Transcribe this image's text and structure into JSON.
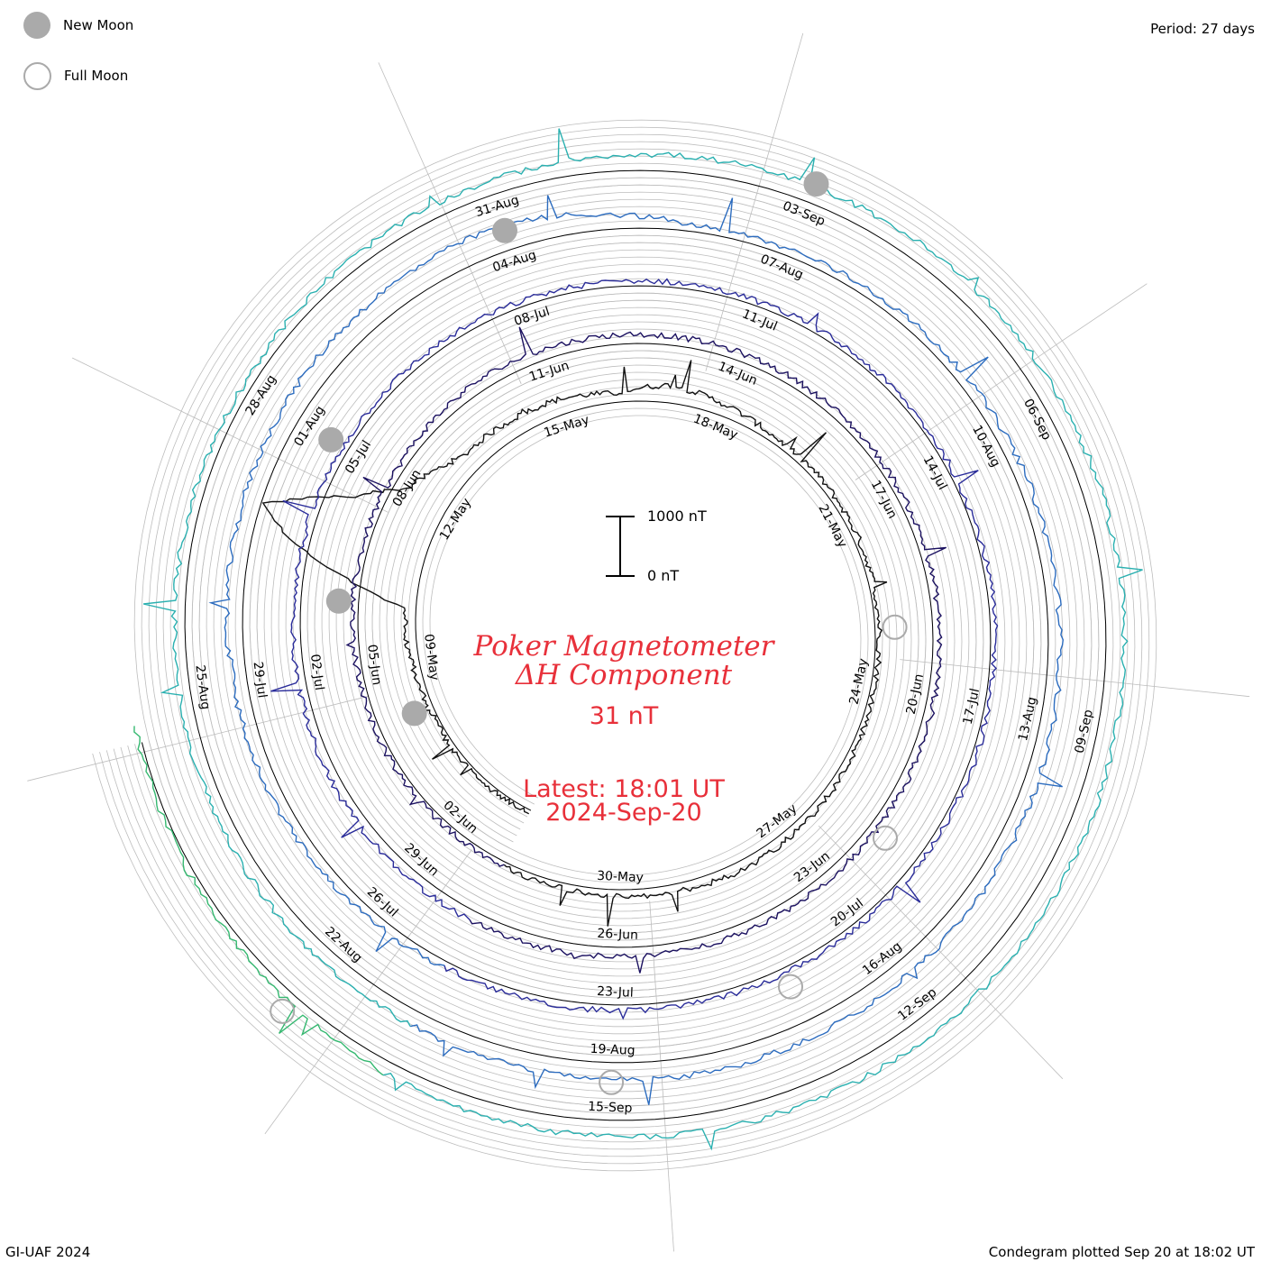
{
  "corner": {
    "period": "Period: 27 days",
    "credit": "GI-UAF 2024",
    "plotted": "Condegram plotted Sep 20 at 18:02 UT"
  },
  "legend": {
    "new_moon": "New Moon",
    "full_moon": "Full Moon",
    "new_moon_color": "#aaaaaa",
    "full_moon_color": "#aaaaaa"
  },
  "center": {
    "title_line1": "Poker Magnetometer",
    "title_line2": "ΔH Component",
    "current_value": "31 nT",
    "latest_line1": "Latest: 18:01 UT",
    "latest_line2": "2024-Sep-20",
    "text_color": "#e8303a"
  },
  "chart_data": {
    "type": "line",
    "chart_kind": "condegram (spiral time series)",
    "period_days": 27,
    "scale_bar": {
      "top_label": "1000 nT",
      "bottom_label": "0 nT",
      "top_value": 1000,
      "bottom_value": 0
    },
    "date_labels": [
      "09-May",
      "12-May",
      "15-May",
      "18-May",
      "21-May",
      "24-May",
      "27-May",
      "30-May",
      "02-Jun",
      "05-Jun",
      "08-Jun",
      "11-Jun",
      "14-Jun",
      "17-Jun",
      "20-Jun",
      "23-Jun",
      "26-Jun",
      "29-Jun",
      "02-Jul",
      "05-Jul",
      "08-Jul",
      "11-Jul",
      "14-Jul",
      "17-Jul",
      "20-Jul",
      "23-Jul",
      "26-Jul",
      "29-Jul",
      "01-Aug",
      "04-Aug",
      "07-Aug",
      "10-Aug",
      "13-Aug",
      "16-Aug",
      "19-Aug",
      "22-Aug",
      "25-Aug",
      "28-Aug",
      "31-Aug",
      "03-Sep",
      "06-Sep",
      "09-Sep",
      "12-Sep",
      "15-Sep"
    ],
    "start_date": "2024-05-05",
    "end_date": "2024-09-20",
    "series": [
      {
        "color": "#111111"
      },
      {
        "color": "#1b1160"
      },
      {
        "color": "#2a2c9a"
      },
      {
        "color": "#2c6cbf"
      },
      {
        "color": "#2ab0b0"
      },
      {
        "color": "#35b870"
      },
      {
        "color": "#84c22c"
      },
      {
        "color": "#b4a81e"
      },
      {
        "color": "#c0801e"
      },
      {
        "color": "#c01c10"
      }
    ],
    "baseline_nT": [
      {
        "date": "2024-05-05",
        "value": 30
      },
      {
        "date": "2024-05-08",
        "value": 40
      },
      {
        "date": "2024-05-10",
        "value": 120
      },
      {
        "date": "2024-05-10T18",
        "value": 1450
      },
      {
        "date": "2024-05-11",
        "value": 1700
      },
      {
        "date": "2024-05-11T12",
        "value": 900
      },
      {
        "date": "2024-05-12",
        "value": 450
      },
      {
        "date": "2024-05-13",
        "value": 200
      },
      {
        "date": "2024-05-15",
        "value": 160
      },
      {
        "date": "2024-05-16",
        "value": 90
      },
      {
        "date": "2024-05-17",
        "value": 180
      },
      {
        "date": "2024-05-19",
        "value": 60
      },
      {
        "date": "2024-05-24",
        "value": 40
      },
      {
        "date": "2024-05-28",
        "value": 90
      },
      {
        "date": "2024-06-01",
        "value": 40
      },
      {
        "date": "2024-06-08",
        "value": 60
      },
      {
        "date": "2024-06-10",
        "value": 110
      },
      {
        "date": "2024-06-17",
        "value": 60
      },
      {
        "date": "2024-06-28",
        "value": 100
      },
      {
        "date": "2024-07-05",
        "value": 60
      },
      {
        "date": "2024-07-15",
        "value": 40
      },
      {
        "date": "2024-07-25",
        "value": 60
      },
      {
        "date": "2024-08-04",
        "value": 260
      },
      {
        "date": "2024-08-06",
        "value": 60
      },
      {
        "date": "2024-08-18",
        "value": 180
      },
      {
        "date": "2024-08-28",
        "value": 80
      },
      {
        "date": "2024-09-01",
        "value": 160
      },
      {
        "date": "2024-09-12",
        "value": 200
      },
      {
        "date": "2024-09-16",
        "value": 150
      },
      {
        "date": "2024-09-20",
        "value": 31
      }
    ],
    "new_moons": [
      "2024-05-08",
      "2024-06-06",
      "2024-07-05",
      "2024-08-04",
      "2024-09-03"
    ],
    "full_moons": [
      "2024-05-23",
      "2024-06-22",
      "2024-07-21",
      "2024-08-19",
      "2024-09-18"
    ]
  }
}
